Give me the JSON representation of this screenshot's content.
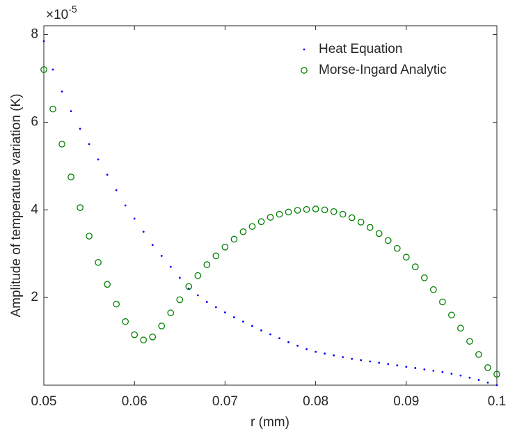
{
  "chart_data": {
    "type": "scatter",
    "xlabel": "r (mm)",
    "ylabel": "Amplitude of temperature variation (K)",
    "y_multiplier_base": "×10",
    "y_multiplier_exponent": "-5",
    "x": [
      0.05,
      0.051,
      0.052,
      0.053,
      0.054,
      0.055,
      0.056,
      0.057,
      0.058,
      0.059,
      0.06,
      0.061,
      0.062,
      0.063,
      0.064,
      0.065,
      0.066,
      0.067,
      0.068,
      0.069,
      0.07,
      0.071,
      0.072,
      0.073,
      0.074,
      0.075,
      0.076,
      0.077,
      0.078,
      0.079,
      0.08,
      0.081,
      0.082,
      0.083,
      0.084,
      0.085,
      0.086,
      0.087,
      0.088,
      0.089,
      0.09,
      0.091,
      0.092,
      0.093,
      0.094,
      0.095,
      0.096,
      0.097,
      0.098,
      0.099,
      0.1
    ],
    "series": [
      {
        "name": "Heat Equation",
        "color": "#0000ff",
        "marker": "dot",
        "values": [
          7.85,
          7.2,
          6.7,
          6.25,
          5.85,
          5.5,
          5.15,
          4.8,
          4.45,
          4.1,
          3.8,
          3.5,
          3.2,
          2.95,
          2.7,
          2.45,
          2.2,
          2.05,
          1.9,
          1.78,
          1.66,
          1.55,
          1.45,
          1.35,
          1.25,
          1.16,
          1.07,
          0.98,
          0.9,
          0.82,
          0.76,
          0.72,
          0.68,
          0.64,
          0.6,
          0.57,
          0.54,
          0.51,
          0.48,
          0.45,
          0.42,
          0.39,
          0.36,
          0.33,
          0.3,
          0.26,
          0.22,
          0.17,
          0.12,
          0.06,
          0.0
        ]
      },
      {
        "name": "Morse-Ingard Analytic",
        "color": "#008000",
        "marker": "circle",
        "values": [
          7.2,
          6.3,
          5.5,
          4.75,
          4.05,
          3.4,
          2.8,
          2.3,
          1.85,
          1.45,
          1.15,
          1.03,
          1.1,
          1.35,
          1.65,
          1.95,
          2.25,
          2.5,
          2.75,
          2.95,
          3.15,
          3.33,
          3.5,
          3.62,
          3.73,
          3.83,
          3.9,
          3.95,
          3.99,
          4.01,
          4.02,
          4.0,
          3.96,
          3.9,
          3.82,
          3.72,
          3.6,
          3.46,
          3.3,
          3.12,
          2.92,
          2.7,
          2.45,
          2.18,
          1.9,
          1.6,
          1.3,
          1.0,
          0.7,
          0.4,
          0.25
        ]
      }
    ],
    "xlim": [
      0.05,
      0.1
    ],
    "xticks": [
      0.05,
      0.06,
      0.07,
      0.08,
      0.09,
      0.1
    ],
    "ylim": [
      0,
      8.2
    ],
    "yticks": [
      2,
      4,
      6,
      8
    ],
    "legend": "top-right",
    "grid": false
  }
}
